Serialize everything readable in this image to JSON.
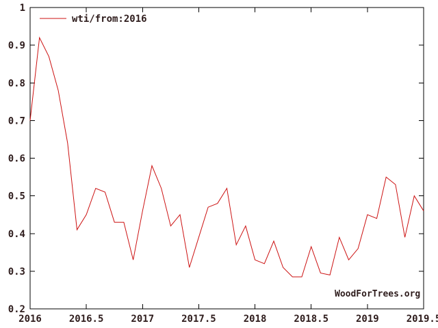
{
  "chart_data": {
    "type": "line",
    "title": "",
    "xlabel": "",
    "ylabel": "",
    "xlim": [
      2016,
      2019.5
    ],
    "ylim": [
      0.2,
      1.0
    ],
    "grid": false,
    "legend_position": "top-left",
    "watermark": "WoodForTrees.org",
    "x_tick_labels": [
      "2016",
      "2016.5",
      "2017",
      "2017.5",
      "2018",
      "2018.5",
      "2019",
      "2019.5"
    ],
    "x_ticks": [
      2016,
      2016.5,
      2017,
      2017.5,
      2018,
      2018.5,
      2019,
      2019.5
    ],
    "y_tick_labels": [
      "0.2",
      "0.3",
      "0.4",
      "0.5",
      "0.6",
      "0.7",
      "0.8",
      "0.9",
      "1"
    ],
    "y_ticks": [
      0.2,
      0.3,
      0.4,
      0.5,
      0.6,
      0.7,
      0.8,
      0.9,
      1.0
    ],
    "series": [
      {
        "name": "wti/from:2016",
        "color": "#cc1111",
        "x_start": 2016.0,
        "x_end": 2019.5,
        "x_step": "1 month",
        "values": [
          0.7,
          0.92,
          0.87,
          0.78,
          0.64,
          0.41,
          0.45,
          0.52,
          0.51,
          0.43,
          0.43,
          0.33,
          0.46,
          0.58,
          0.52,
          0.42,
          0.45,
          0.31,
          0.39,
          0.47,
          0.48,
          0.52,
          0.37,
          0.42,
          0.33,
          0.32,
          0.38,
          0.31,
          0.285,
          0.285,
          0.365,
          0.295,
          0.29,
          0.39,
          0.33,
          0.36,
          0.45,
          0.44,
          0.55,
          0.53,
          0.39,
          0.5,
          0.46
        ]
      }
    ],
    "colors": {
      "background": "#ffffff",
      "border": "#000000",
      "text": "#2e1c1c",
      "line": "#cc1111"
    }
  }
}
